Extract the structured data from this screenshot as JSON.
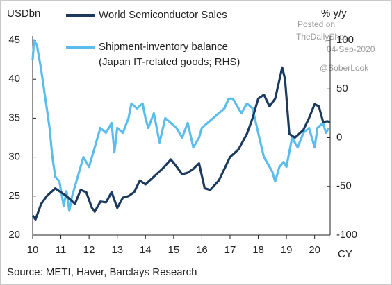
{
  "chart_data": {
    "type": "line",
    "y_label": "USDbn",
    "y2_label": "% y/y",
    "x_label": "CY",
    "source": "Source: METI, Haver, Barclays Research",
    "annotations": [
      "Posted on",
      "TheDailyShot",
      "04-Sep-2020",
      "@SoberLook"
    ],
    "xlim": [
      10,
      20.55
    ],
    "xticks": [
      10,
      11,
      12,
      13,
      14,
      15,
      16,
      17,
      18,
      19,
      20
    ],
    "ylim": [
      20,
      45
    ],
    "yticks": [
      20,
      25,
      30,
      35,
      40,
      45
    ],
    "y2lim": [
      -100,
      100
    ],
    "y2ticks": [
      -100,
      -50,
      0,
      50,
      100
    ],
    "series": [
      {
        "name": "World Semiconductor Sales",
        "color": "#1c3a5e",
        "axis": "y",
        "x": [
          10.0,
          10.1,
          10.3,
          10.5,
          10.8,
          11.0,
          11.2,
          11.5,
          11.7,
          11.9,
          12.1,
          12.2,
          12.4,
          12.6,
          12.8,
          13.0,
          13.2,
          13.4,
          13.6,
          13.8,
          14.0,
          14.3,
          14.6,
          14.9,
          15.1,
          15.3,
          15.5,
          15.7,
          15.9,
          16.1,
          16.3,
          16.6,
          16.8,
          17.0,
          17.3,
          17.6,
          17.8,
          18.0,
          18.2,
          18.4,
          18.6,
          18.85,
          18.95,
          19.1,
          19.3,
          19.6,
          19.8,
          20.0,
          20.15,
          20.3,
          20.45,
          20.55
        ],
        "values": [
          22.5,
          22,
          24,
          25,
          26,
          25.5,
          25,
          24,
          25.8,
          25.5,
          23.5,
          23,
          24.3,
          24.2,
          25.5,
          23.5,
          24.8,
          25,
          25.5,
          27,
          26.5,
          27.5,
          28.5,
          29.7,
          28.8,
          27.8,
          28,
          28.5,
          29.2,
          26,
          25.8,
          27,
          28.5,
          30,
          31,
          33,
          35,
          37.5,
          38,
          36.5,
          37.5,
          41.5,
          40,
          33,
          32.5,
          33.5,
          35,
          36.8,
          36.5,
          34.5,
          34.6,
          34.5
        ]
      },
      {
        "name": "Shipment-inventory balance",
        "description": "(Japan IT-related goods; RHS)",
        "color": "#5bbdec",
        "axis": "y2",
        "x": [
          10.0,
          10.05,
          10.15,
          10.3,
          10.5,
          10.6,
          10.7,
          10.8,
          10.95,
          11.1,
          11.2,
          11.3,
          11.4,
          11.6,
          11.8,
          12.0,
          12.2,
          12.4,
          12.6,
          12.8,
          12.9,
          13.0,
          13.2,
          13.4,
          13.5,
          13.7,
          13.9,
          14.0,
          14.1,
          14.3,
          14.5,
          14.7,
          14.9,
          15.1,
          15.3,
          15.5,
          15.7,
          15.9,
          16.0,
          16.2,
          16.4,
          16.6,
          16.8,
          16.95,
          17.1,
          17.4,
          17.5,
          17.6,
          17.8,
          18.0,
          18.2,
          18.4,
          18.5,
          18.6,
          18.75,
          18.9,
          19.0,
          19.2,
          19.4,
          19.6,
          19.8,
          20.0,
          20.1,
          20.3,
          20.4,
          20.5
        ],
        "values": [
          80,
          100,
          95,
          70,
          30,
          10,
          -20,
          -40,
          -45,
          -70,
          -55,
          -75,
          -60,
          -40,
          -20,
          -30,
          -10,
          10,
          5,
          15,
          -15,
          10,
          5,
          20,
          35,
          30,
          35,
          20,
          10,
          25,
          -5,
          20,
          15,
          10,
          0,
          15,
          -10,
          0,
          10,
          15,
          20,
          25,
          30,
          40,
          40,
          25,
          30,
          35,
          30,
          5,
          -20,
          -30,
          -35,
          -45,
          -30,
          -25,
          -30,
          0,
          -10,
          5,
          10,
          -10,
          10,
          15,
          5,
          10
        ]
      }
    ]
  }
}
